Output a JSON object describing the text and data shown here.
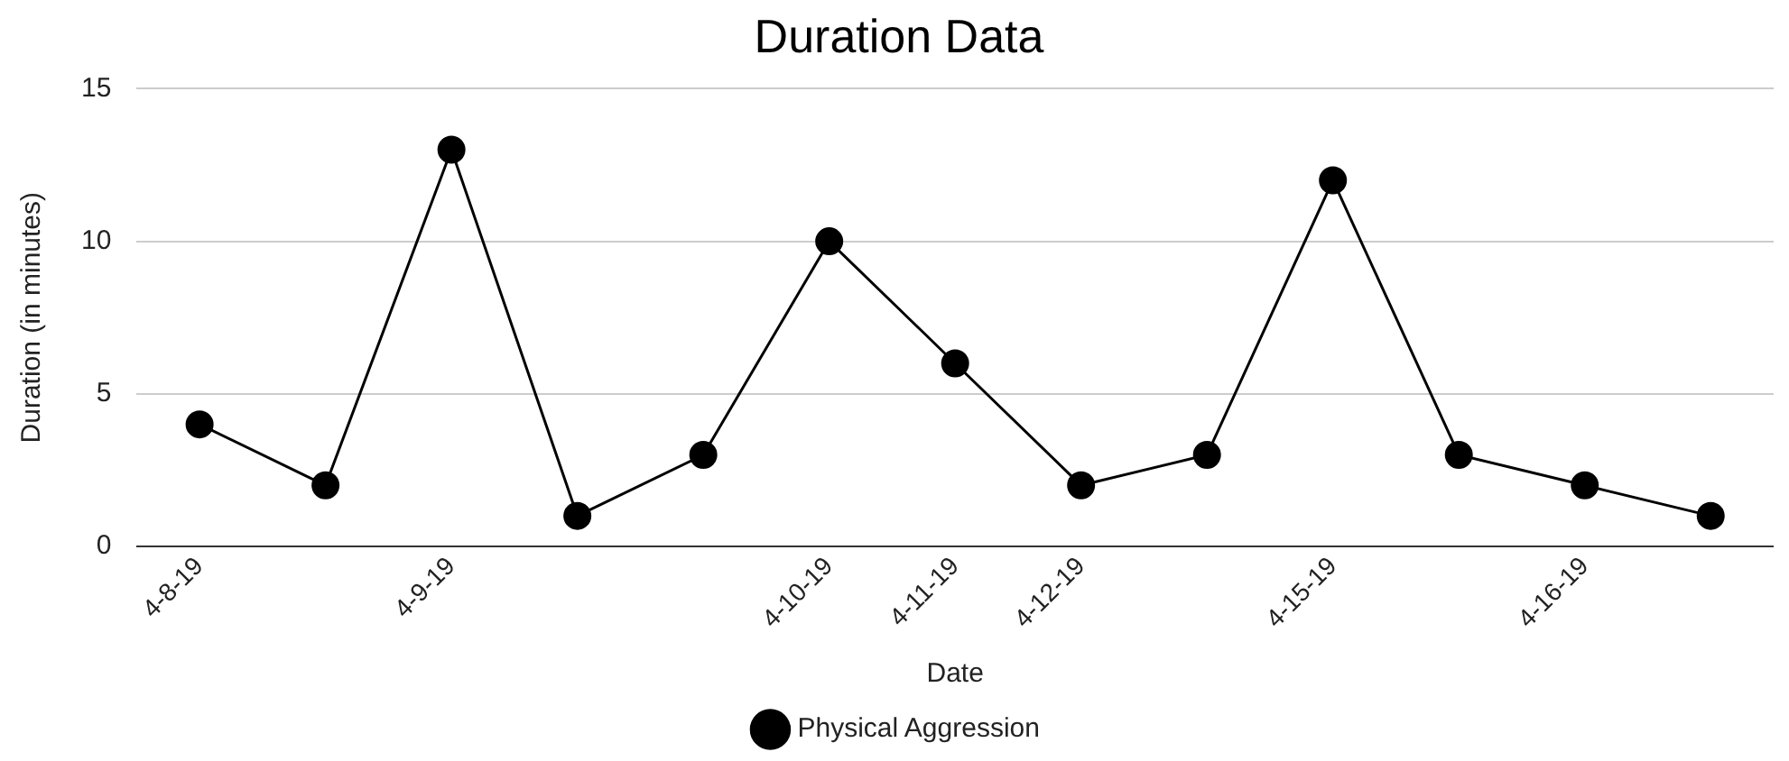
{
  "chart_data": {
    "type": "line",
    "title": "Duration Data",
    "xlabel": "Date",
    "ylabel": "Duration (in minutes)",
    "categories": [
      "4-8-19",
      null,
      "4-9-19",
      null,
      null,
      "4-10-19",
      "4-11-19",
      "4-12-19",
      null,
      "4-15-19",
      null,
      "4-16-19",
      null
    ],
    "series": [
      {
        "name": "Physical Aggression",
        "color": "#000000",
        "values": [
          4,
          2,
          13,
          1,
          3,
          10,
          6,
          2,
          3,
          12,
          3,
          2,
          1
        ]
      }
    ],
    "ylim": [
      0,
      15
    ],
    "yticks": [
      0,
      5,
      10,
      15
    ],
    "grid": "y",
    "legend": "bottom",
    "marker": "circle",
    "line_style": "solid"
  }
}
